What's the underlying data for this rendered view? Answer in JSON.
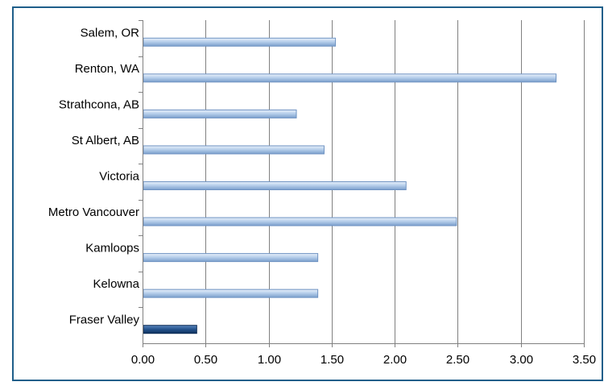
{
  "chart_data": {
    "type": "bar",
    "orientation": "horizontal",
    "categories": [
      "Salem, OR",
      "Renton, WA",
      "Strathcona, AB",
      "St Albert, AB",
      "Victoria",
      "Metro Vancouver",
      "Kamloops",
      "Kelowna",
      "Fraser Valley"
    ],
    "values": [
      1.53,
      3.28,
      1.22,
      1.44,
      2.09,
      2.49,
      1.39,
      1.39,
      0.43
    ],
    "highlight": "Fraser Valley",
    "xlim": [
      0,
      3.5
    ],
    "xticks": [
      "0.00",
      "0.50",
      "1.00",
      "1.50",
      "2.00",
      "2.50",
      "3.00",
      "3.50"
    ],
    "title": "",
    "xlabel": "",
    "ylabel": "",
    "grid": "vertical",
    "legend": "none",
    "colors": {
      "bar": "#9dbce0",
      "bar_highlight": "#1f4e87",
      "grid": "#808080",
      "frame": "#1f5f8a"
    }
  }
}
